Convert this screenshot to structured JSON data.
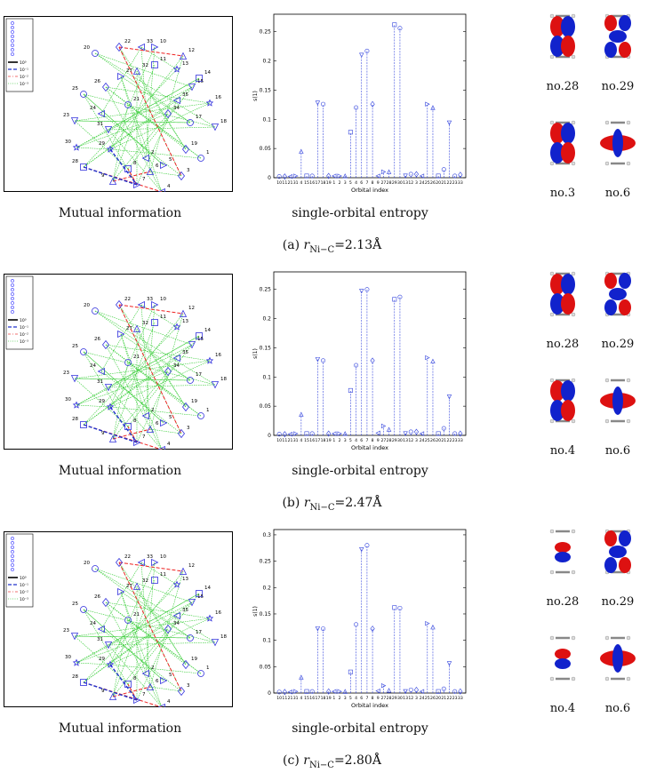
{
  "panels": [
    {
      "id": "a",
      "subcaption_prefix": "(a) ",
      "r_label": "r",
      "r_sub": "Ni−C",
      "r_value": "=2.13Å",
      "mi_caption": "Mutual information",
      "ent_caption": "single-orbital entropy",
      "orbitals": [
        {
          "label": "no.28",
          "type": "p"
        },
        {
          "label": "no.29",
          "type": "d"
        },
        {
          "label": "no.3",
          "type": "p"
        },
        {
          "label": "no.6",
          "type": "dz"
        }
      ]
    },
    {
      "id": "b",
      "subcaption_prefix": "(b) ",
      "r_label": "r",
      "r_sub": "Ni−C",
      "r_value": "=2.47Å",
      "mi_caption": "Mutual information",
      "ent_caption": "single-orbital entropy",
      "orbitals": [
        {
          "label": "no.28",
          "type": "p"
        },
        {
          "label": "no.29",
          "type": "d"
        },
        {
          "label": "no.4",
          "type": "p2"
        },
        {
          "label": "no.6",
          "type": "dz"
        }
      ]
    },
    {
      "id": "c",
      "subcaption_prefix": "(c) ",
      "r_label": "r",
      "r_sub": "Ni−C",
      "r_value": "=2.80Å",
      "mi_caption": "Mutual information",
      "ent_caption": "single-orbital entropy",
      "orbitals": [
        {
          "label": "no.28",
          "type": "s"
        },
        {
          "label": "no.29",
          "type": "d"
        },
        {
          "label": "no.4",
          "type": "s2"
        },
        {
          "label": "no.6",
          "type": "dz2"
        }
      ]
    }
  ],
  "mi_legend": [
    "10⁰",
    "10⁻¹",
    "10⁻²",
    "10⁻³"
  ],
  "mi_nodes": [
    "20",
    "22",
    "33",
    "10",
    "12",
    "14",
    "16",
    "18",
    "1",
    "3",
    "4",
    "7",
    "9",
    "28",
    "30",
    "23",
    "25",
    "26",
    "24",
    "27",
    "32",
    "11",
    "13",
    "15",
    "17",
    "19",
    "2",
    "5",
    "6",
    "8",
    "29",
    "31",
    "21",
    "34",
    "35"
  ],
  "chart_data": [
    {
      "type": "stem",
      "title": "",
      "xlabel": "Orbital index",
      "ylabel": "s(1)",
      "ylim": [
        0,
        0.28
      ],
      "yticks": [
        0,
        0.05,
        0.1,
        0.15,
        0.2,
        0.25
      ],
      "categories": [
        "10",
        "11",
        "21",
        "31",
        "4",
        "15",
        "16",
        "17",
        "18",
        "19",
        "1",
        "2",
        "3",
        "5",
        "4",
        "6",
        "7",
        "8",
        "9",
        "27",
        "28",
        "29",
        "30",
        "13",
        "12",
        "3",
        "24",
        "25",
        "26",
        "20",
        "21",
        "22",
        "23",
        "33"
      ],
      "values": [
        0.002,
        0.002,
        0.002,
        0.003,
        0.045,
        0.003,
        0.003,
        0.128,
        0.126,
        0.003,
        0.003,
        0.003,
        0.003,
        0.078,
        0.12,
        0.21,
        0.217,
        0.126,
        0.003,
        0.01,
        0.01,
        0.262,
        0.256,
        0.003,
        0.006,
        0.006,
        0.003,
        0.126,
        0.12,
        0.003,
        0.014,
        0.094,
        0.003,
        0.005
      ]
    },
    {
      "type": "stem",
      "title": "",
      "xlabel": "Orbital index",
      "ylabel": "s(1)",
      "ylim": [
        0,
        0.28
      ],
      "yticks": [
        0,
        0.05,
        0.1,
        0.15,
        0.2,
        0.25
      ],
      "categories": [
        "10",
        "11",
        "21",
        "31",
        "4",
        "15",
        "16",
        "17",
        "18",
        "19",
        "1",
        "2",
        "3",
        "5",
        "4",
        "6",
        "7",
        "8",
        "9",
        "27",
        "28",
        "29",
        "30",
        "13",
        "12",
        "3",
        "24",
        "25",
        "26",
        "20",
        "21",
        "22",
        "23",
        "33"
      ],
      "values": [
        0.002,
        0.002,
        0.002,
        0.003,
        0.036,
        0.003,
        0.003,
        0.13,
        0.128,
        0.003,
        0.003,
        0.003,
        0.003,
        0.077,
        0.12,
        0.247,
        0.25,
        0.128,
        0.004,
        0.016,
        0.01,
        0.233,
        0.237,
        0.003,
        0.006,
        0.006,
        0.003,
        0.133,
        0.127,
        0.003,
        0.012,
        0.066,
        0.003,
        0.003
      ]
    },
    {
      "type": "stem",
      "title": "",
      "xlabel": "Orbital index",
      "ylabel": "s(1)",
      "ylim": [
        0,
        0.31
      ],
      "yticks": [
        0,
        0.05,
        0.1,
        0.15,
        0.2,
        0.25,
        0.3
      ],
      "categories": [
        "10",
        "11",
        "21",
        "31",
        "4",
        "15",
        "16",
        "17",
        "18",
        "19",
        "1",
        "2",
        "3",
        "5",
        "4",
        "6",
        "7",
        "8",
        "9",
        "27",
        "28",
        "29",
        "30",
        "13",
        "12",
        "3",
        "24",
        "25",
        "26",
        "20",
        "21",
        "22",
        "23",
        "33"
      ],
      "values": [
        0.002,
        0.002,
        0.002,
        0.003,
        0.03,
        0.003,
        0.003,
        0.122,
        0.122,
        0.003,
        0.003,
        0.003,
        0.003,
        0.04,
        0.13,
        0.272,
        0.28,
        0.122,
        0.004,
        0.014,
        0.005,
        0.162,
        0.161,
        0.003,
        0.006,
        0.006,
        0.003,
        0.132,
        0.125,
        0.003,
        0.008,
        0.056,
        0.003,
        0.003
      ]
    }
  ]
}
